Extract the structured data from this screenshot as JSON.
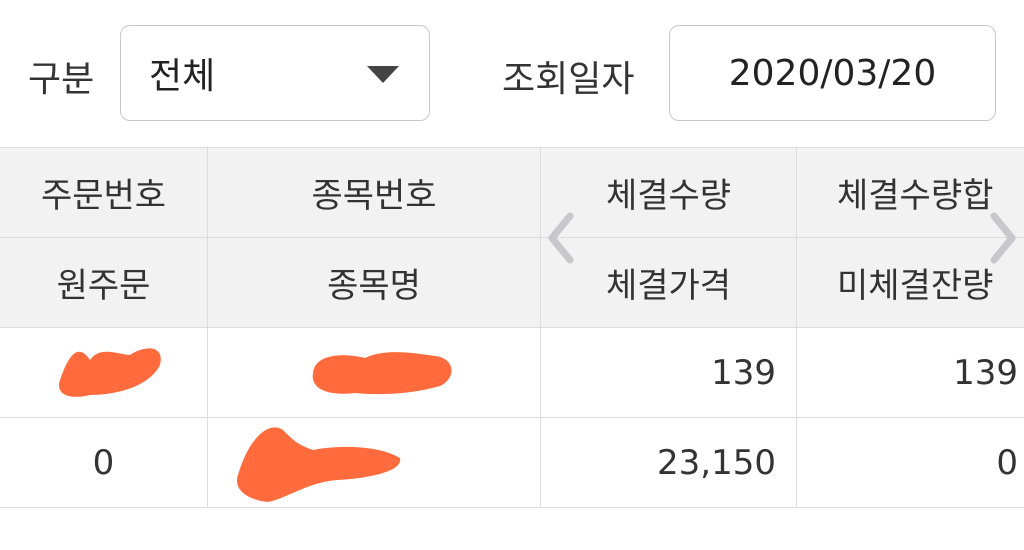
{
  "filters": {
    "category_label": "구분",
    "category_value": "전체",
    "date_label": "조회일자",
    "date_value": "2020/03/20"
  },
  "table": {
    "header_row1": [
      "주문번호",
      "종목번호",
      "체결수량",
      "체결수량합"
    ],
    "header_row2": [
      "원주문",
      "종목명",
      "체결가격",
      "미체결잔량"
    ],
    "rows": [
      {
        "line1": [
          "",
          "",
          "139",
          "139"
        ],
        "line2": [
          "0",
          "",
          "23,150",
          "0"
        ]
      }
    ]
  },
  "redaction_color": "#ff6b3d"
}
